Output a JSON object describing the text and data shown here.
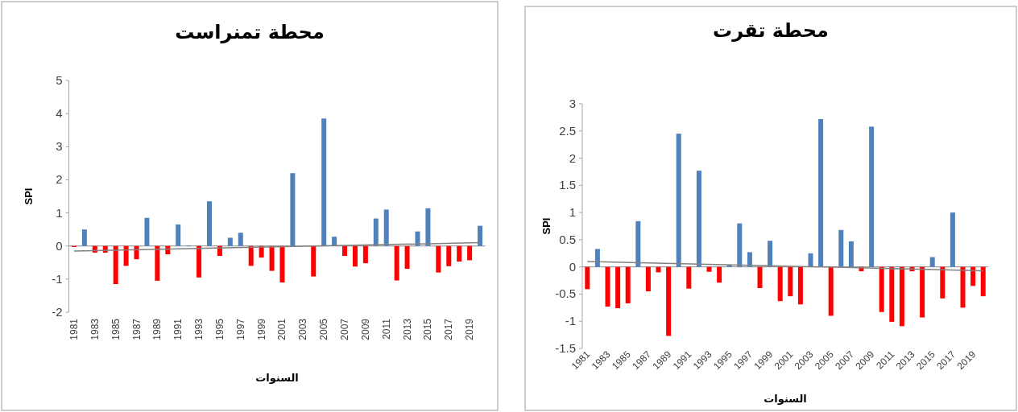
{
  "chart_data": [
    {
      "type": "bar",
      "title": "محطة تمنراست",
      "xlabel": "السنوات",
      "ylabel": "SPI",
      "xlim": [
        1980.5,
        2020.5
      ],
      "ylim": [
        -2,
        5
      ],
      "yticks": [
        -2,
        -1,
        0,
        1,
        2,
        3,
        4,
        5
      ],
      "xticks": [
        1981,
        1983,
        1985,
        1987,
        1989,
        1991,
        1993,
        1995,
        1997,
        1999,
        2001,
        2003,
        2005,
        2007,
        2009,
        2011,
        2013,
        2015,
        2017,
        2019
      ],
      "series": [
        {
          "type": "bar",
          "x": [
            1981,
            1982,
            1983,
            1984,
            1985,
            1986,
            1987,
            1988,
            1989,
            1990,
            1991,
            1992,
            1993,
            1994,
            1995,
            1996,
            1997,
            1998,
            1999,
            2000,
            2001,
            2002,
            2003,
            2004,
            2005,
            2006,
            2007,
            2008,
            2009,
            2010,
            2011,
            2012,
            2013,
            2014,
            2015,
            2016,
            2017,
            2018,
            2019,
            2020
          ],
          "values": [
            -0.03,
            0.5,
            -0.2,
            -0.2,
            -1.15,
            -0.6,
            -0.4,
            0.85,
            -1.05,
            -0.25,
            0.65,
            0.02,
            -0.95,
            1.35,
            -0.3,
            0.25,
            0.4,
            -0.6,
            -0.35,
            -0.75,
            -1.1,
            2.2,
            null,
            -0.92,
            3.85,
            0.28,
            -0.3,
            -0.62,
            -0.52,
            0.83,
            1.1,
            -1.04,
            -0.69,
            0.44,
            1.14,
            -0.8,
            -0.61,
            -0.47,
            -0.43,
            0.61
          ],
          "colors": [
            "#ff0000",
            "#4f81bd",
            "#ff0000",
            "#ff0000",
            "#ff0000",
            "#ff0000",
            "#ff0000",
            "#4f81bd",
            "#ff0000",
            "#ff0000",
            "#4f81bd",
            "#4f81bd",
            "#ff0000",
            "#4f81bd",
            "#ff0000",
            "#4f81bd",
            "#4f81bd",
            "#ff0000",
            "#ff0000",
            "#ff0000",
            "#ff0000",
            "#4f81bd",
            "#ff0000",
            "#ff0000",
            "#4f81bd",
            "#4f81bd",
            "#ff0000",
            "#ff0000",
            "#ff0000",
            "#4f81bd",
            "#4f81bd",
            "#ff0000",
            "#ff0000",
            "#4f81bd",
            "#4f81bd",
            "#ff0000",
            "#ff0000",
            "#ff0000",
            "#ff0000",
            "#4f81bd"
          ]
        },
        {
          "type": "line",
          "x": [
            1981,
            2020
          ],
          "values": [
            -0.15,
            0.1
          ],
          "color": "#808080"
        }
      ]
    },
    {
      "type": "bar",
      "title": "محطة تقرت",
      "xlabel": "السنوات",
      "ylabel": "SPI",
      "xlim": [
        1980.5,
        2020.5
      ],
      "ylim": [
        -1.5,
        3
      ],
      "yticks": [
        -1.5,
        -1,
        -0.5,
        0,
        0.5,
        1,
        1.5,
        2,
        2.5,
        3
      ],
      "xticks": [
        1981,
        1983,
        1985,
        1987,
        1989,
        1991,
        1993,
        1995,
        1997,
        1999,
        2001,
        2003,
        2005,
        2007,
        2009,
        2011,
        2013,
        2015,
        2017,
        2019
      ],
      "series": [
        {
          "type": "bar",
          "x": [
            1981,
            1982,
            1983,
            1984,
            1985,
            1986,
            1987,
            1988,
            1989,
            1990,
            1991,
            1992,
            1993,
            1994,
            1995,
            1996,
            1997,
            1998,
            1999,
            2000,
            2001,
            2002,
            2003,
            2004,
            2005,
            2006,
            2007,
            2008,
            2009,
            2010,
            2011,
            2012,
            2013,
            2014,
            2015,
            2016,
            2017,
            2018,
            2019,
            2020
          ],
          "values": [
            -0.41,
            0.33,
            -0.73,
            -0.76,
            -0.67,
            0.84,
            -0.45,
            -0.1,
            -1.27,
            2.45,
            -0.4,
            1.77,
            -0.09,
            -0.29,
            0.04,
            0.8,
            0.27,
            -0.39,
            0.48,
            -0.63,
            -0.54,
            -0.69,
            0.25,
            2.72,
            -0.9,
            0.68,
            0.47,
            -0.08,
            2.58,
            -0.83,
            -1.01,
            -1.09,
            -0.08,
            -0.93,
            0.18,
            -0.58,
            1.0,
            -0.75,
            -0.35,
            -0.54
          ],
          "colors": [
            "#ff0000",
            "#4f81bd",
            "#ff0000",
            "#ff0000",
            "#ff0000",
            "#4f81bd",
            "#ff0000",
            "#ff0000",
            "#ff0000",
            "#4f81bd",
            "#ff0000",
            "#4f81bd",
            "#ff0000",
            "#ff0000",
            "#4f81bd",
            "#4f81bd",
            "#4f81bd",
            "#ff0000",
            "#4f81bd",
            "#ff0000",
            "#ff0000",
            "#ff0000",
            "#4f81bd",
            "#4f81bd",
            "#ff0000",
            "#4f81bd",
            "#4f81bd",
            "#ff0000",
            "#4f81bd",
            "#ff0000",
            "#ff0000",
            "#ff0000",
            "#ff0000",
            "#ff0000",
            "#4f81bd",
            "#ff0000",
            "#4f81bd",
            "#ff0000",
            "#ff0000",
            "#ff0000"
          ]
        },
        {
          "type": "line",
          "x": [
            1981,
            2020
          ],
          "values": [
            0.1,
            -0.07
          ],
          "color": "#808080"
        }
      ]
    }
  ]
}
